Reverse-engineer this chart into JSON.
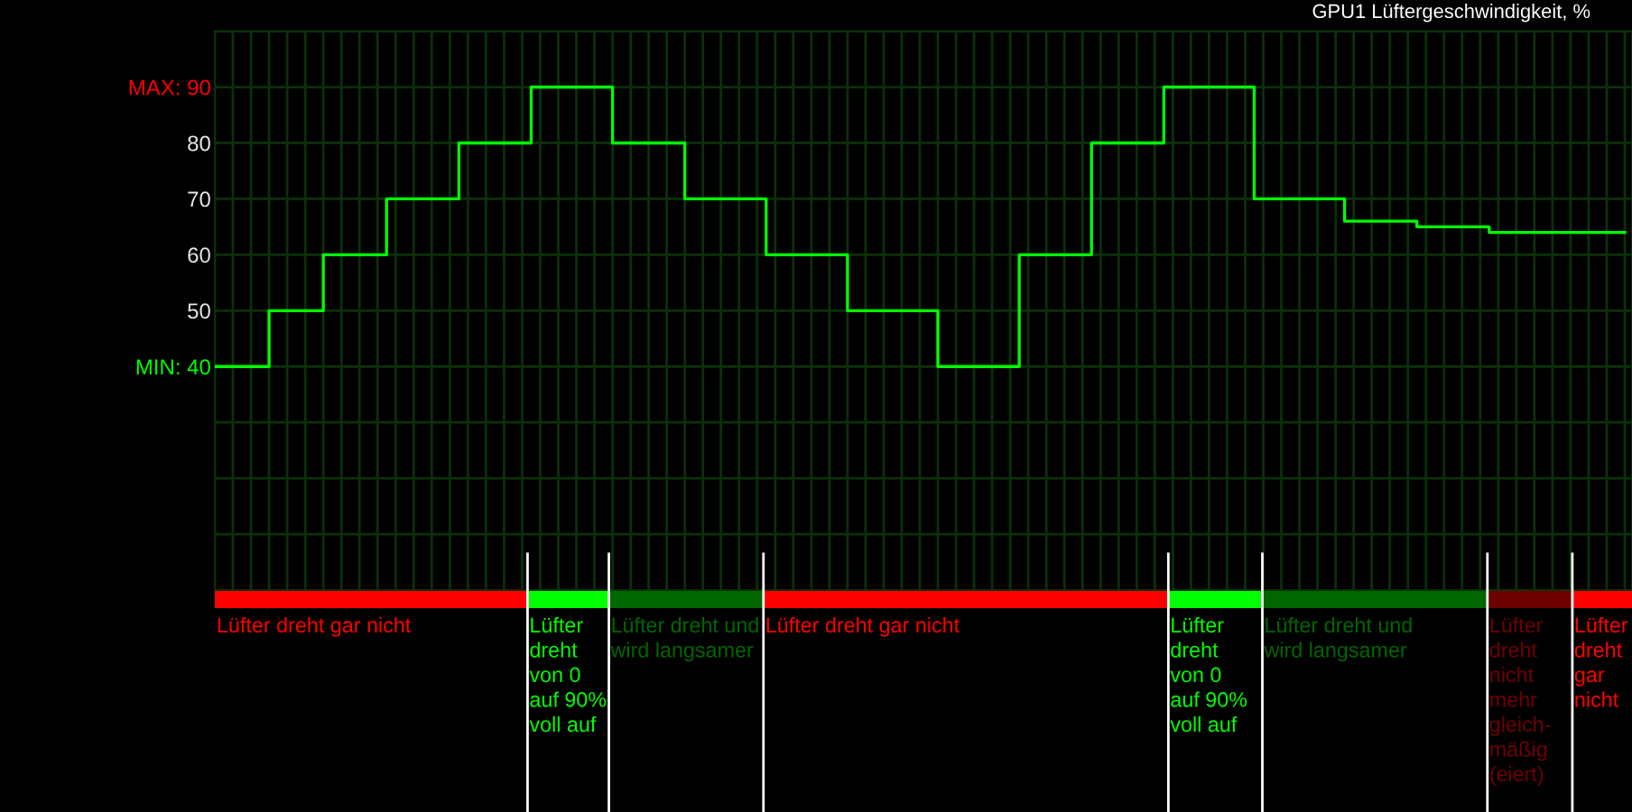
{
  "chart_data": {
    "type": "step",
    "title": "GPU1 Lüftergeschwindigkeit, %",
    "categories": [
      null,
      null,
      null,
      null,
      null,
      null,
      null,
      null,
      null,
      null,
      null,
      null,
      null,
      null,
      null,
      null,
      null,
      null,
      null,
      null,
      null,
      null,
      null,
      null,
      null,
      null,
      null,
      null,
      null,
      null,
      null,
      null,
      null,
      null,
      null,
      null,
      null,
      null,
      null,
      null,
      null,
      null,
      null,
      null,
      null,
      null,
      null,
      null,
      null,
      null,
      null,
      null,
      null,
      null,
      null,
      null,
      null,
      null,
      null,
      null,
      null,
      null,
      null,
      null,
      null,
      null,
      null,
      null,
      null,
      null,
      null,
      null,
      null,
      null,
      null,
      null,
      null,
      null,
      null,
      null,
      null,
      null,
      null,
      null,
      null,
      null,
      null,
      null,
      null,
      null,
      null,
      null,
      null,
      null,
      null,
      null,
      null,
      null,
      null,
      null,
      null,
      null,
      null,
      null,
      null,
      null,
      null,
      null,
      null,
      null,
      null,
      null,
      null,
      null,
      null,
      null,
      null,
      null,
      null,
      null,
      null,
      null,
      null,
      null,
      null,
      null,
      null,
      null,
      null,
      null,
      null,
      null,
      null,
      null,
      null,
      null,
      null,
      null,
      null,
      null,
      null,
      null,
      null,
      null,
      null,
      null,
      null,
      null,
      null,
      null,
      null,
      null,
      null,
      null,
      null,
      null,
      null
    ],
    "series": [
      {
        "color": "#00ff00",
        "values": [
          40,
          40,
          40,
          40,
          40,
          40,
          50,
          50,
          50,
          50,
          50,
          50,
          60,
          60,
          60,
          60,
          60,
          60,
          60,
          70,
          70,
          70,
          70,
          70,
          70,
          70,
          70,
          80,
          80,
          80,
          80,
          80,
          80,
          80,
          80,
          90,
          90,
          90,
          90,
          90,
          90,
          90,
          90,
          90,
          80,
          80,
          80,
          80,
          80,
          80,
          80,
          80,
          70,
          70,
          70,
          70,
          70,
          70,
          70,
          70,
          70,
          60,
          60,
          60,
          60,
          60,
          60,
          60,
          60,
          60,
          50,
          50,
          50,
          50,
          50,
          50,
          50,
          50,
          50,
          50,
          40,
          40,
          40,
          40,
          40,
          40,
          40,
          40,
          40,
          60,
          60,
          60,
          60,
          60,
          60,
          60,
          60,
          80,
          80,
          80,
          80,
          80,
          80,
          80,
          80,
          90,
          90,
          90,
          90,
          90,
          90,
          90,
          90,
          90,
          90,
          70,
          70,
          70,
          70,
          70,
          70,
          70,
          70,
          70,
          70,
          66,
          66,
          66,
          66,
          66,
          66,
          66,
          66,
          65,
          65,
          65,
          65,
          65,
          65,
          65,
          65,
          64,
          64,
          64,
          64,
          64,
          64,
          64,
          64,
          64,
          64,
          64,
          64,
          64,
          64,
          64,
          64
        ]
      }
    ],
    "ylim": [
      0,
      100
    ],
    "yticks": [
      {
        "value": 10,
        "label": null
      },
      {
        "value": 20,
        "label": null
      },
      {
        "value": 30,
        "label": null
      },
      {
        "value": 40,
        "label": "MIN: 40"
      },
      50,
      60,
      70,
      80,
      {
        "value": 90,
        "label": "MAX: 90"
      },
      {
        "value": 100,
        "label": null
      }
    ],
    "grid": true,
    "annotations": [
      "Lüfter dreht gar nicht",
      "Lüfter dreht von 0 auf 90% voll auf",
      "Lüfter dreht und wird langsamer",
      "Lüfter dreht gar nicht",
      "Lüfter dreht von 0 auf 90% voll auf",
      "Lüfter dreht und wird langsamer",
      "Lüfter dreht nicht mehr gleich-mäßig (eiert)",
      "Lüfter dreht gar nicht"
    ]
  }
}
